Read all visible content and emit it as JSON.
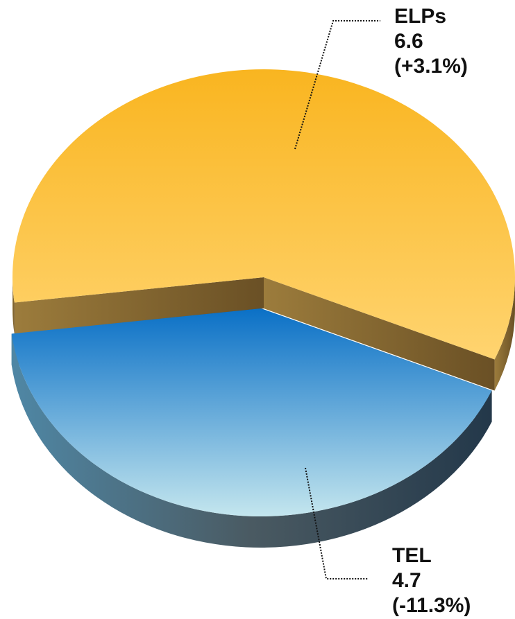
{
  "chart_data": {
    "type": "pie",
    "categories": [
      "ELPs",
      "TEL"
    ],
    "values": [
      6.6,
      4.7
    ],
    "changes": [
      "(+3.1%)",
      "(-11.3%)"
    ],
    "colors": [
      "#fbbd2e",
      "#1a7cc8"
    ]
  }
}
